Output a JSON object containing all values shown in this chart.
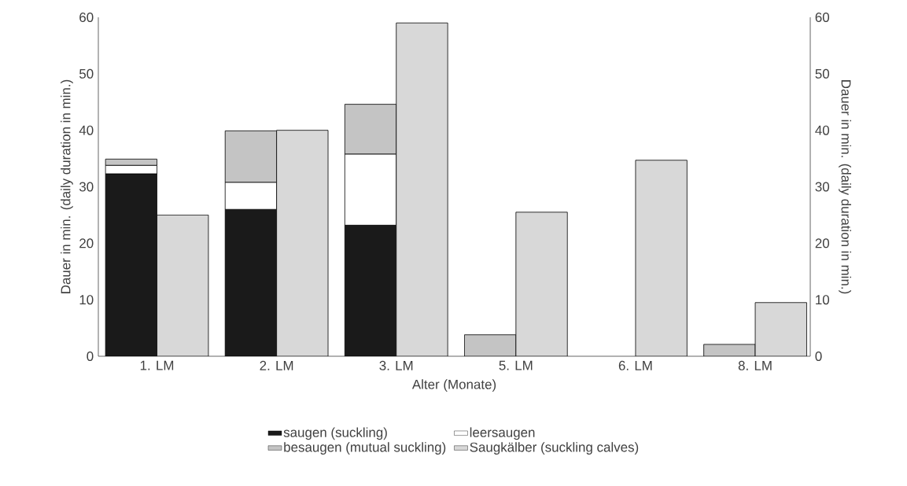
{
  "chart_data": {
    "type": "bar",
    "stacked": true,
    "xlabel": "Alter (Monate)",
    "ylabel": "Dauer in min. (daily duration in min.)",
    "y2label": "Dauer in min. (daily duration in min.)",
    "categories": [
      "1. LM",
      "2. LM",
      "3. LM",
      "5. LM",
      "6. LM",
      "8. LM"
    ],
    "series": [
      {
        "name": "saugen (suckling)",
        "color": "#1a1a1a",
        "values": [
          32.3,
          26,
          23.2,
          null,
          null,
          null
        ]
      },
      {
        "name": "leersaugen",
        "color": "#ffffff",
        "values": [
          1.5,
          4.8,
          12.6,
          null,
          null,
          null
        ]
      },
      {
        "name": "besaugen (mutual suckling)",
        "color": "#c4c4c4",
        "values": [
          1.1,
          9.1,
          8.8,
          3.8,
          null,
          2.1
        ]
      },
      {
        "name": "Saugkälber (suckling calves)",
        "color": "#d8d8d8",
        "axis": "y2",
        "values": [
          25,
          40,
          59,
          25.5,
          34.7,
          9.5
        ]
      }
    ],
    "ylim": [
      0,
      60
    ],
    "yticks": [
      0,
      10,
      20,
      30,
      40,
      50,
      60
    ],
    "y2lim": [
      0,
      60
    ],
    "y2ticks": [
      0,
      10,
      20,
      30,
      40,
      50,
      60
    ],
    "legend": "bottom"
  }
}
